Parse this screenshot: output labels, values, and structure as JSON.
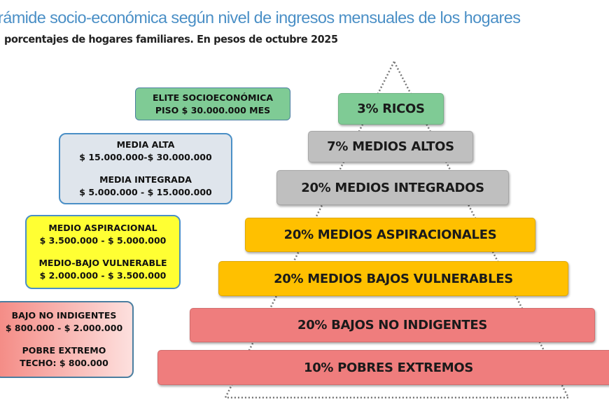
{
  "title": "rámide socio-económica según nivel de ingresos mensuales de los hogares",
  "subtitle": "porcentajes de hogares familiares. En pesos de octubre 2025",
  "colors": {
    "green": "#7fcb95",
    "grey": "#bfbfbf",
    "orange": "#ffc000",
    "red": "#ef7d7d",
    "yellow": "#ffff33",
    "lightblue": "#dfe5ec",
    "title": "#4a8fc6"
  },
  "pyramid": [
    {
      "label": "3%  RICOS",
      "percent": 3
    },
    {
      "label": "7%  MEDIOS ALTOS",
      "percent": 7
    },
    {
      "label": "20%  MEDIOS INTEGRADOS",
      "percent": 20
    },
    {
      "label": "20%  MEDIOS ASPIRACIONALES",
      "percent": 20
    },
    {
      "label": "20%  MEDIOS BAJOS VULNERABLES",
      "percent": 20
    },
    {
      "label": "20%  BAJOS NO INDIGENTES",
      "percent": 20
    },
    {
      "label": "10%  POBRES EXTREMOS",
      "percent": 10
    }
  ],
  "ranges": {
    "elite": {
      "name": "ELITE SOCIOECONÓMICA",
      "range": "PISO $ 30.000.000 MES"
    },
    "media_alta": {
      "name": "MEDIA ALTA",
      "range": "$ 15.000.000-$ 30.000.000"
    },
    "media_integrada": {
      "name": "MEDIA INTEGRADA",
      "range": "$ 5.000.000 - $ 15.000.000"
    },
    "medio_aspiracional": {
      "name": "MEDIO ASPIRACIONAL",
      "range": "$ 3.500.000 - $ 5.000.000"
    },
    "medio_bajo_vulnerable": {
      "name": "MEDIO-BAJO VULNERABLE",
      "range": "$ 2.000.000 - $ 3.500.000"
    },
    "bajo_no_indigentes": {
      "name": "BAJO NO INDIGENTES",
      "range": "$ 800.000 - $ 2.000.000"
    },
    "pobre_extremo": {
      "name": "POBRE EXTREMO",
      "range": "TECHO: $ 800.000"
    }
  }
}
